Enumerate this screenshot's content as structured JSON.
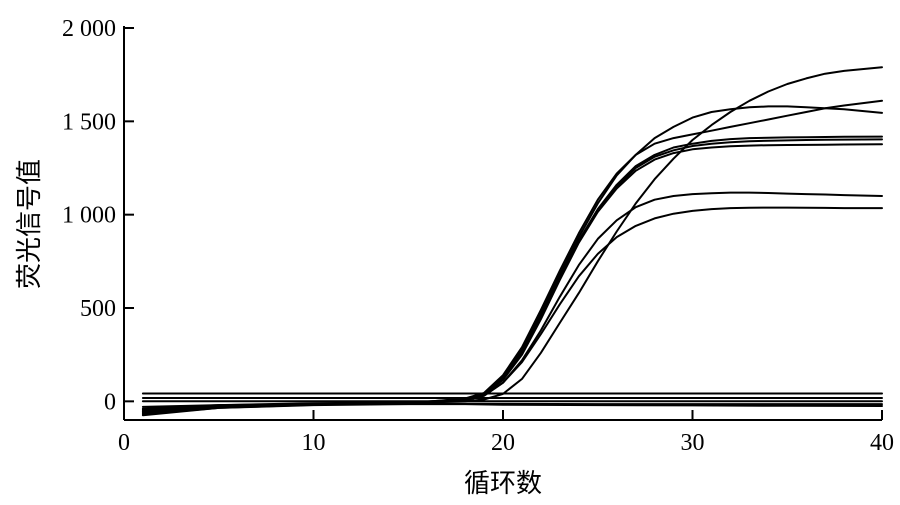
{
  "chart_data": {
    "type": "line",
    "xlabel": "循环数",
    "ylabel": "荧光信号值",
    "xlim": [
      0,
      40
    ],
    "ylim": [
      -100,
      2000
    ],
    "x_ticks": [
      0,
      10,
      20,
      30,
      40
    ],
    "x_tick_labels": [
      "0",
      "10",
      "20",
      "30",
      "40"
    ],
    "y_ticks": [
      0,
      500,
      1000,
      1500,
      2000
    ],
    "y_tick_labels": [
      "0",
      "500",
      "1 000",
      "1 500",
      "2 000"
    ],
    "grid": false,
    "legend": "none",
    "series": [
      {
        "x": [
          1,
          5,
          10,
          15,
          18,
          19,
          20,
          21,
          22,
          23,
          24,
          25,
          26,
          27,
          28,
          29,
          30,
          31,
          32,
          33,
          34,
          35,
          36,
          37,
          38,
          40
        ],
        "y": [
          -60,
          -30,
          -15,
          -10,
          10,
          40,
          130,
          280,
          470,
          680,
          880,
          1060,
          1210,
          1320,
          1410,
          1470,
          1520,
          1550,
          1565,
          1575,
          1580,
          1580,
          1575,
          1570,
          1565,
          1545
        ]
      },
      {
        "x": [
          1,
          5,
          10,
          15,
          18,
          19,
          20,
          21,
          22,
          23,
          24,
          25,
          26,
          27,
          28,
          29,
          30,
          31,
          32,
          33,
          34,
          35,
          36,
          37,
          38,
          40
        ],
        "y": [
          -50,
          -25,
          -15,
          -10,
          15,
          45,
          140,
          290,
          490,
          700,
          900,
          1080,
          1220,
          1320,
          1380,
          1410,
          1430,
          1450,
          1470,
          1490,
          1510,
          1530,
          1550,
          1570,
          1585,
          1610
        ]
      },
      {
        "x": [
          1,
          5,
          10,
          15,
          18,
          19,
          20,
          21,
          22,
          23,
          24,
          25,
          26,
          27,
          28,
          29,
          30,
          31,
          32,
          33,
          34,
          35,
          36,
          37,
          38,
          40
        ],
        "y": [
          -55,
          -28,
          -15,
          -10,
          10,
          40,
          120,
          260,
          450,
          660,
          860,
          1030,
          1160,
          1260,
          1320,
          1360,
          1380,
          1395,
          1405,
          1410,
          1412,
          1414,
          1415,
          1416,
          1417,
          1418
        ]
      },
      {
        "x": [
          1,
          5,
          10,
          15,
          18,
          19,
          20,
          21,
          22,
          23,
          24,
          25,
          26,
          27,
          28,
          29,
          30,
          31,
          32,
          33,
          34,
          35,
          36,
          37,
          38,
          40
        ],
        "y": [
          -45,
          -22,
          -12,
          -8,
          12,
          42,
          125,
          265,
          455,
          665,
          860,
          1025,
          1150,
          1250,
          1310,
          1345,
          1368,
          1380,
          1388,
          1393,
          1396,
          1398,
          1400,
          1401,
          1402,
          1403
        ]
      },
      {
        "x": [
          1,
          5,
          10,
          15,
          18,
          19,
          20,
          21,
          22,
          23,
          24,
          25,
          26,
          27,
          28,
          29,
          30,
          31,
          32,
          33,
          34,
          35,
          36,
          37,
          38,
          40
        ],
        "y": [
          -65,
          -32,
          -16,
          -10,
          8,
          35,
          115,
          250,
          440,
          650,
          850,
          1015,
          1140,
          1235,
          1295,
          1330,
          1350,
          1360,
          1366,
          1370,
          1372,
          1373,
          1374,
          1375,
          1376,
          1377
        ]
      },
      {
        "x": [
          1,
          5,
          10,
          15,
          18,
          19,
          20,
          21,
          22,
          23,
          24,
          25,
          26,
          27,
          28,
          29,
          30,
          31,
          32,
          33,
          34,
          35,
          36,
          37,
          38,
          40
        ],
        "y": [
          -40,
          -20,
          -10,
          -5,
          5,
          30,
          100,
          220,
          380,
          560,
          730,
          870,
          970,
          1040,
          1080,
          1100,
          1110,
          1115,
          1118,
          1118,
          1116,
          1113,
          1110,
          1108,
          1105,
          1100
        ]
      },
      {
        "x": [
          1,
          5,
          10,
          15,
          18,
          19,
          20,
          21,
          22,
          23,
          24,
          25,
          26,
          27,
          28,
          29,
          30,
          31,
          32,
          33,
          34,
          35,
          36,
          37,
          38,
          40
        ],
        "y": [
          -70,
          -35,
          -18,
          -12,
          5,
          30,
          100,
          210,
          360,
          520,
          670,
          790,
          880,
          940,
          980,
          1005,
          1020,
          1030,
          1035,
          1037,
          1038,
          1038,
          1037,
          1036,
          1035,
          1035
        ]
      },
      {
        "x": [
          1,
          5,
          10,
          15,
          18,
          19,
          20,
          21,
          22,
          23,
          24,
          25,
          26,
          27,
          28,
          29,
          30,
          31,
          32,
          33,
          34,
          35,
          36,
          37,
          38,
          40
        ],
        "y": [
          -55,
          -28,
          -15,
          -10,
          0,
          10,
          40,
          120,
          260,
          420,
          580,
          750,
          910,
          1060,
          1190,
          1300,
          1400,
          1480,
          1550,
          1610,
          1660,
          1700,
          1730,
          1755,
          1770,
          1790
        ]
      },
      {
        "x": [
          1,
          40
        ],
        "y": [
          42,
          42
        ]
      },
      {
        "x": [
          1,
          40
        ],
        "y": [
          18,
          18
        ]
      },
      {
        "x": [
          1,
          40
        ],
        "y": [
          0,
          0
        ]
      },
      {
        "x": [
          1,
          5,
          10,
          15,
          18,
          20,
          25,
          30,
          35,
          40
        ],
        "y": [
          -75,
          -35,
          -20,
          -15,
          -15,
          -18,
          -20,
          -22,
          -24,
          -25
        ]
      },
      {
        "x": [
          1,
          5,
          10,
          15,
          20,
          25,
          30,
          35,
          40
        ],
        "y": [
          -30,
          -20,
          -15,
          -12,
          -14,
          -15,
          -15,
          -15,
          -15
        ]
      }
    ]
  }
}
